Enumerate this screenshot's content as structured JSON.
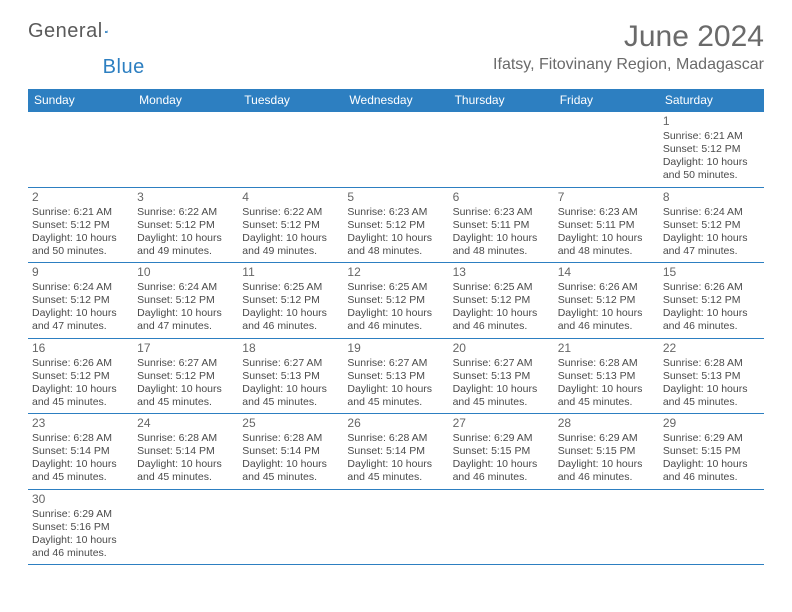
{
  "brand": {
    "name_part1": "General",
    "name_part2": "Blue",
    "logo_color": "#2d7fc1",
    "text_color": "#5a5a5a"
  },
  "title": "June 2024",
  "location": "Ifatsy, Fitovinany Region, Madagascar",
  "header_bg": "#2d7fc1",
  "header_text_color": "#ffffff",
  "grid_line_color": "#2d7fc1",
  "day_headers": [
    "Sunday",
    "Monday",
    "Tuesday",
    "Wednesday",
    "Thursday",
    "Friday",
    "Saturday"
  ],
  "weeks": [
    [
      null,
      null,
      null,
      null,
      null,
      null,
      {
        "n": "1",
        "sr": "Sunrise: 6:21 AM",
        "ss": "Sunset: 5:12 PM",
        "dl": "Daylight: 10 hours and 50 minutes."
      }
    ],
    [
      {
        "n": "2",
        "sr": "Sunrise: 6:21 AM",
        "ss": "Sunset: 5:12 PM",
        "dl": "Daylight: 10 hours and 50 minutes."
      },
      {
        "n": "3",
        "sr": "Sunrise: 6:22 AM",
        "ss": "Sunset: 5:12 PM",
        "dl": "Daylight: 10 hours and 49 minutes."
      },
      {
        "n": "4",
        "sr": "Sunrise: 6:22 AM",
        "ss": "Sunset: 5:12 PM",
        "dl": "Daylight: 10 hours and 49 minutes."
      },
      {
        "n": "5",
        "sr": "Sunrise: 6:23 AM",
        "ss": "Sunset: 5:12 PM",
        "dl": "Daylight: 10 hours and 48 minutes."
      },
      {
        "n": "6",
        "sr": "Sunrise: 6:23 AM",
        "ss": "Sunset: 5:11 PM",
        "dl": "Daylight: 10 hours and 48 minutes."
      },
      {
        "n": "7",
        "sr": "Sunrise: 6:23 AM",
        "ss": "Sunset: 5:11 PM",
        "dl": "Daylight: 10 hours and 48 minutes."
      },
      {
        "n": "8",
        "sr": "Sunrise: 6:24 AM",
        "ss": "Sunset: 5:12 PM",
        "dl": "Daylight: 10 hours and 47 minutes."
      }
    ],
    [
      {
        "n": "9",
        "sr": "Sunrise: 6:24 AM",
        "ss": "Sunset: 5:12 PM",
        "dl": "Daylight: 10 hours and 47 minutes."
      },
      {
        "n": "10",
        "sr": "Sunrise: 6:24 AM",
        "ss": "Sunset: 5:12 PM",
        "dl": "Daylight: 10 hours and 47 minutes."
      },
      {
        "n": "11",
        "sr": "Sunrise: 6:25 AM",
        "ss": "Sunset: 5:12 PM",
        "dl": "Daylight: 10 hours and 46 minutes."
      },
      {
        "n": "12",
        "sr": "Sunrise: 6:25 AM",
        "ss": "Sunset: 5:12 PM",
        "dl": "Daylight: 10 hours and 46 minutes."
      },
      {
        "n": "13",
        "sr": "Sunrise: 6:25 AM",
        "ss": "Sunset: 5:12 PM",
        "dl": "Daylight: 10 hours and 46 minutes."
      },
      {
        "n": "14",
        "sr": "Sunrise: 6:26 AM",
        "ss": "Sunset: 5:12 PM",
        "dl": "Daylight: 10 hours and 46 minutes."
      },
      {
        "n": "15",
        "sr": "Sunrise: 6:26 AM",
        "ss": "Sunset: 5:12 PM",
        "dl": "Daylight: 10 hours and 46 minutes."
      }
    ],
    [
      {
        "n": "16",
        "sr": "Sunrise: 6:26 AM",
        "ss": "Sunset: 5:12 PM",
        "dl": "Daylight: 10 hours and 45 minutes."
      },
      {
        "n": "17",
        "sr": "Sunrise: 6:27 AM",
        "ss": "Sunset: 5:12 PM",
        "dl": "Daylight: 10 hours and 45 minutes."
      },
      {
        "n": "18",
        "sr": "Sunrise: 6:27 AM",
        "ss": "Sunset: 5:13 PM",
        "dl": "Daylight: 10 hours and 45 minutes."
      },
      {
        "n": "19",
        "sr": "Sunrise: 6:27 AM",
        "ss": "Sunset: 5:13 PM",
        "dl": "Daylight: 10 hours and 45 minutes."
      },
      {
        "n": "20",
        "sr": "Sunrise: 6:27 AM",
        "ss": "Sunset: 5:13 PM",
        "dl": "Daylight: 10 hours and 45 minutes."
      },
      {
        "n": "21",
        "sr": "Sunrise: 6:28 AM",
        "ss": "Sunset: 5:13 PM",
        "dl": "Daylight: 10 hours and 45 minutes."
      },
      {
        "n": "22",
        "sr": "Sunrise: 6:28 AM",
        "ss": "Sunset: 5:13 PM",
        "dl": "Daylight: 10 hours and 45 minutes."
      }
    ],
    [
      {
        "n": "23",
        "sr": "Sunrise: 6:28 AM",
        "ss": "Sunset: 5:14 PM",
        "dl": "Daylight: 10 hours and 45 minutes."
      },
      {
        "n": "24",
        "sr": "Sunrise: 6:28 AM",
        "ss": "Sunset: 5:14 PM",
        "dl": "Daylight: 10 hours and 45 minutes."
      },
      {
        "n": "25",
        "sr": "Sunrise: 6:28 AM",
        "ss": "Sunset: 5:14 PM",
        "dl": "Daylight: 10 hours and 45 minutes."
      },
      {
        "n": "26",
        "sr": "Sunrise: 6:28 AM",
        "ss": "Sunset: 5:14 PM",
        "dl": "Daylight: 10 hours and 45 minutes."
      },
      {
        "n": "27",
        "sr": "Sunrise: 6:29 AM",
        "ss": "Sunset: 5:15 PM",
        "dl": "Daylight: 10 hours and 46 minutes."
      },
      {
        "n": "28",
        "sr": "Sunrise: 6:29 AM",
        "ss": "Sunset: 5:15 PM",
        "dl": "Daylight: 10 hours and 46 minutes."
      },
      {
        "n": "29",
        "sr": "Sunrise: 6:29 AM",
        "ss": "Sunset: 5:15 PM",
        "dl": "Daylight: 10 hours and 46 minutes."
      }
    ],
    [
      {
        "n": "30",
        "sr": "Sunrise: 6:29 AM",
        "ss": "Sunset: 5:16 PM",
        "dl": "Daylight: 10 hours and 46 minutes."
      },
      null,
      null,
      null,
      null,
      null,
      null
    ]
  ]
}
